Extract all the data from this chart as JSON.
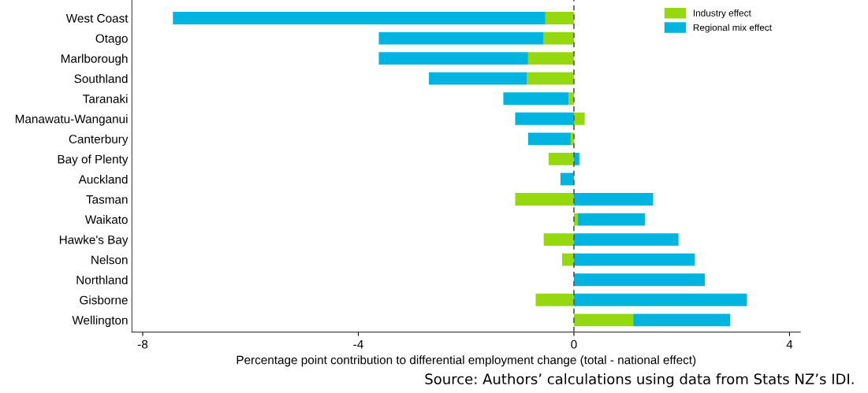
{
  "chart_data": {
    "type": "bar",
    "orientation": "horizontal",
    "stacked": true,
    "categories": [
      "West Coast",
      "Otago",
      "Marlborough",
      "Southland",
      "Taranaki",
      "Manawatu-Wanganui",
      "Canterbury",
      "Bay of Plenty",
      "Auckland",
      "Tasman",
      "Waikato",
      "Hawke's Bay",
      "Nelson",
      "Northland",
      "Gisborne",
      "Wellington"
    ],
    "series": [
      {
        "name": "Industry effect",
        "color": "#96d80f",
        "values": [
          -0.53,
          -0.57,
          -0.85,
          -0.87,
          -0.1,
          0.2,
          -0.06,
          -0.47,
          null,
          -1.09,
          0.07,
          -0.56,
          -0.22,
          0,
          -0.71,
          1.1
        ]
      },
      {
        "name": "Regional mix effect",
        "color": "#00b4e0",
        "values": [
          -6.91,
          -3.05,
          -2.77,
          -1.82,
          -1.21,
          -1.09,
          -0.79,
          0.1,
          -0.25,
          1.47,
          1.25,
          1.94,
          2.24,
          2.43,
          3.21,
          1.8
        ]
      }
    ],
    "xlim": [
      -8.2,
      4.2
    ],
    "xticks": [
      -8,
      -4,
      0,
      4
    ],
    "xlabel": "Percentage point contribution to differential employment change (total - national effect)",
    "ref_lines": [
      {
        "axis": "x",
        "value": 0,
        "color": "#555555",
        "line_style": "dashed"
      }
    ],
    "grid": false,
    "legend": "top right",
    "annotations": [
      "Source: Authors’ calculations using data from Stats NZ’s IDI."
    ]
  }
}
